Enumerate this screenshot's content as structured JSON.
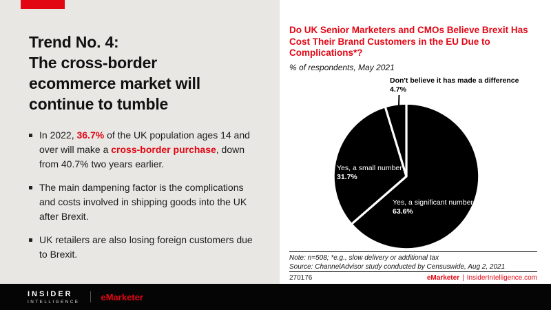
{
  "accent_red": "#e20613",
  "left_panel": {
    "bg": "#e9e7e4",
    "title_line1": "Trend No. 4:",
    "title_line2": "The cross-border ecommerce market will continue to tumble",
    "bullets": {
      "b1_t1": "In 2022, ",
      "b1_e1": "36.7%",
      "b1_t2": " of the UK population ages 14 and over will make a ",
      "b1_e2": "cross-border purchase",
      "b1_t3": ", down from 40.7% two years earlier.",
      "b2": "The main dampening factor is the complications and costs involved in shipping goods into the UK after Brexit.",
      "b3": "UK retailers are also losing foreign customers due to Brexit."
    }
  },
  "chart_panel": {
    "title": "Do UK Senior Marketers and CMOs Believe Brexit Has Cost Their Brand Customers in the EU Due to Complications*?",
    "subtitle": "% of respondents, May 2021",
    "note": "Note: n=508; *e.g., slow delivery or additional tax",
    "source": "Source: ChannelAdvisor study conducted by Censuswide, Aug 2, 2021",
    "chart_id": "270176",
    "credit_brand": "eMarketer",
    "credit_separator": "|",
    "credit_site": "InsiderIntelligence.com"
  },
  "chart_data": {
    "type": "pie",
    "title": "Do UK Senior Marketers and CMOs Believe Brexit Has Cost Their Brand Customers in the EU Due to Complications*?",
    "subtitle": "% of respondents, May 2021",
    "unit": "% of respondents",
    "start_angle_deg": 0,
    "direction": "clockwise",
    "legend_position": "labels-on-slices",
    "colors": {
      "slice_fill": "#000000",
      "slice_stroke": "#ffffff"
    },
    "slices": [
      {
        "label": "Yes, a significant number",
        "value": 63.6,
        "pct_label": "63.6%"
      },
      {
        "label": "Yes, a small number",
        "value": 31.7,
        "pct_label": "31.7%"
      },
      {
        "label": "Don't believe it has made a difference",
        "value": 4.7,
        "pct_label": "4.7%"
      }
    ],
    "note": "Note: n=508; *e.g., slow delivery or additional tax",
    "source": "Source: ChannelAdvisor study conducted by Censuswide, Aug 2, 2021"
  },
  "footer": {
    "insider": "INSIDER",
    "intelligence": "INTELLIGENCE",
    "emarketer": "eMarketer"
  }
}
